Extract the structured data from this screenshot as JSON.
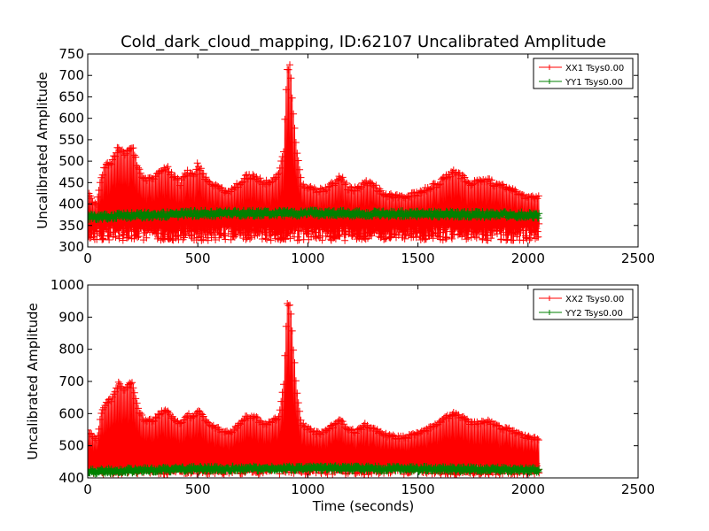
{
  "figure": {
    "title": "Cold_dark_cloud_mapping, ID:62107 Uncalibrated Amplitude",
    "xlabel": "Time (seconds)"
  },
  "chart_data": [
    {
      "type": "line",
      "title": "Cold_dark_cloud_mapping, ID:62107 Uncalibrated Amplitude",
      "xlabel": "",
      "ylabel": "Uncalibrated Amplitude",
      "xlim": [
        0,
        2500
      ],
      "ylim": [
        300,
        750
      ],
      "xticks": [
        0,
        500,
        1000,
        1500,
        2000,
        2500
      ],
      "yticks": [
        300,
        350,
        400,
        450,
        500,
        550,
        600,
        650,
        700,
        750
      ],
      "legend_position": "top-right",
      "grid": false,
      "series": [
        {
          "name": "XX1 Tsys0.00",
          "color": "#ff0000",
          "marker": "+",
          "x_range": [
            0,
            2050
          ],
          "baseline": 335,
          "envelope": [
            [
              0,
              430
            ],
            [
              40,
              400
            ],
            [
              60,
              470
            ],
            [
              80,
              495
            ],
            [
              110,
              505
            ],
            [
              140,
              540
            ],
            [
              170,
              520
            ],
            [
              200,
              545
            ],
            [
              230,
              490
            ],
            [
              260,
              460
            ],
            [
              300,
              465
            ],
            [
              330,
              485
            ],
            [
              360,
              490
            ],
            [
              390,
              470
            ],
            [
              420,
              455
            ],
            [
              450,
              480
            ],
            [
              480,
              470
            ],
            [
              500,
              500
            ],
            [
              530,
              470
            ],
            [
              560,
              455
            ],
            [
              600,
              440
            ],
            [
              640,
              435
            ],
            [
              680,
              450
            ],
            [
              720,
              470
            ],
            [
              760,
              470
            ],
            [
              800,
              455
            ],
            [
              840,
              460
            ],
            [
              870,
              480
            ],
            [
              890,
              530
            ],
            [
              905,
              725
            ],
            [
              920,
              725
            ],
            [
              935,
              610
            ],
            [
              950,
              530
            ],
            [
              970,
              455
            ],
            [
              1000,
              445
            ],
            [
              1040,
              435
            ],
            [
              1080,
              440
            ],
            [
              1120,
              455
            ],
            [
              1150,
              470
            ],
            [
              1180,
              445
            ],
            [
              1220,
              440
            ],
            [
              1260,
              455
            ],
            [
              1300,
              450
            ],
            [
              1340,
              430
            ],
            [
              1380,
              425
            ],
            [
              1420,
              420
            ],
            [
              1460,
              425
            ],
            [
              1500,
              430
            ],
            [
              1540,
              440
            ],
            [
              1580,
              450
            ],
            [
              1620,
              465
            ],
            [
              1660,
              480
            ],
            [
              1700,
              470
            ],
            [
              1740,
              455
            ],
            [
              1780,
              460
            ],
            [
              1820,
              460
            ],
            [
              1860,
              450
            ],
            [
              1900,
              445
            ],
            [
              1940,
              435
            ],
            [
              1980,
              425
            ],
            [
              2020,
              420
            ],
            [
              2045,
              420
            ]
          ]
        },
        {
          "name": "YY1 Tsys0.00",
          "color": "#008000",
          "marker": "+",
          "x_range": [
            0,
            2050
          ],
          "level": [
            [
              0,
              370
            ],
            [
              500,
              378
            ],
            [
              1000,
              379
            ],
            [
              1500,
              377
            ],
            [
              2050,
              374
            ]
          ],
          "spread": 7
        }
      ]
    },
    {
      "type": "line",
      "title": "",
      "xlabel": "Time (seconds)",
      "ylabel": "Uncalibrated Amplitude",
      "xlim": [
        0,
        2500
      ],
      "ylim": [
        400,
        1000
      ],
      "xticks": [
        0,
        500,
        1000,
        1500,
        2000,
        2500
      ],
      "yticks": [
        400,
        500,
        600,
        700,
        800,
        900,
        1000
      ],
      "legend_position": "top-right",
      "grid": false,
      "series": [
        {
          "name": "XX2 Tsys0.00",
          "color": "#ff0000",
          "marker": "+",
          "x_range": [
            0,
            2050
          ],
          "baseline": 430,
          "envelope": [
            [
              0,
              550
            ],
            [
              40,
              520
            ],
            [
              60,
              600
            ],
            [
              80,
              640
            ],
            [
              110,
              650
            ],
            [
              140,
              700
            ],
            [
              170,
              680
            ],
            [
              200,
              705
            ],
            [
              230,
              620
            ],
            [
              260,
              580
            ],
            [
              300,
              585
            ],
            [
              330,
              610
            ],
            [
              360,
              615
            ],
            [
              390,
              590
            ],
            [
              420,
              570
            ],
            [
              450,
              605
            ],
            [
              480,
              590
            ],
            [
              500,
              620
            ],
            [
              530,
              590
            ],
            [
              560,
              570
            ],
            [
              600,
              555
            ],
            [
              640,
              545
            ],
            [
              680,
              565
            ],
            [
              720,
              595
            ],
            [
              760,
              595
            ],
            [
              800,
              570
            ],
            [
              840,
              580
            ],
            [
              870,
              600
            ],
            [
              890,
              700
            ],
            [
              905,
              945
            ],
            [
              920,
              945
            ],
            [
              935,
              800
            ],
            [
              950,
              680
            ],
            [
              970,
              575
            ],
            [
              1000,
              560
            ],
            [
              1040,
              545
            ],
            [
              1080,
              550
            ],
            [
              1120,
              570
            ],
            [
              1150,
              590
            ],
            [
              1180,
              555
            ],
            [
              1220,
              550
            ],
            [
              1260,
              570
            ],
            [
              1300,
              560
            ],
            [
              1340,
              540
            ],
            [
              1380,
              535
            ],
            [
              1420,
              530
            ],
            [
              1460,
              535
            ],
            [
              1500,
              545
            ],
            [
              1540,
              555
            ],
            [
              1580,
              570
            ],
            [
              1620,
              590
            ],
            [
              1660,
              605
            ],
            [
              1700,
              595
            ],
            [
              1740,
              575
            ],
            [
              1780,
              580
            ],
            [
              1820,
              580
            ],
            [
              1860,
              565
            ],
            [
              1900,
              560
            ],
            [
              1940,
              550
            ],
            [
              1980,
              535
            ],
            [
              2020,
              530
            ],
            [
              2045,
              530
            ]
          ]
        },
        {
          "name": "YY2 Tsys0.00",
          "color": "#008000",
          "marker": "+",
          "x_range": [
            0,
            2050
          ],
          "level": [
            [
              0,
              420
            ],
            [
              500,
              428
            ],
            [
              1000,
              430
            ],
            [
              1500,
              428
            ],
            [
              2050,
              425
            ]
          ],
          "spread": 8
        }
      ]
    }
  ]
}
